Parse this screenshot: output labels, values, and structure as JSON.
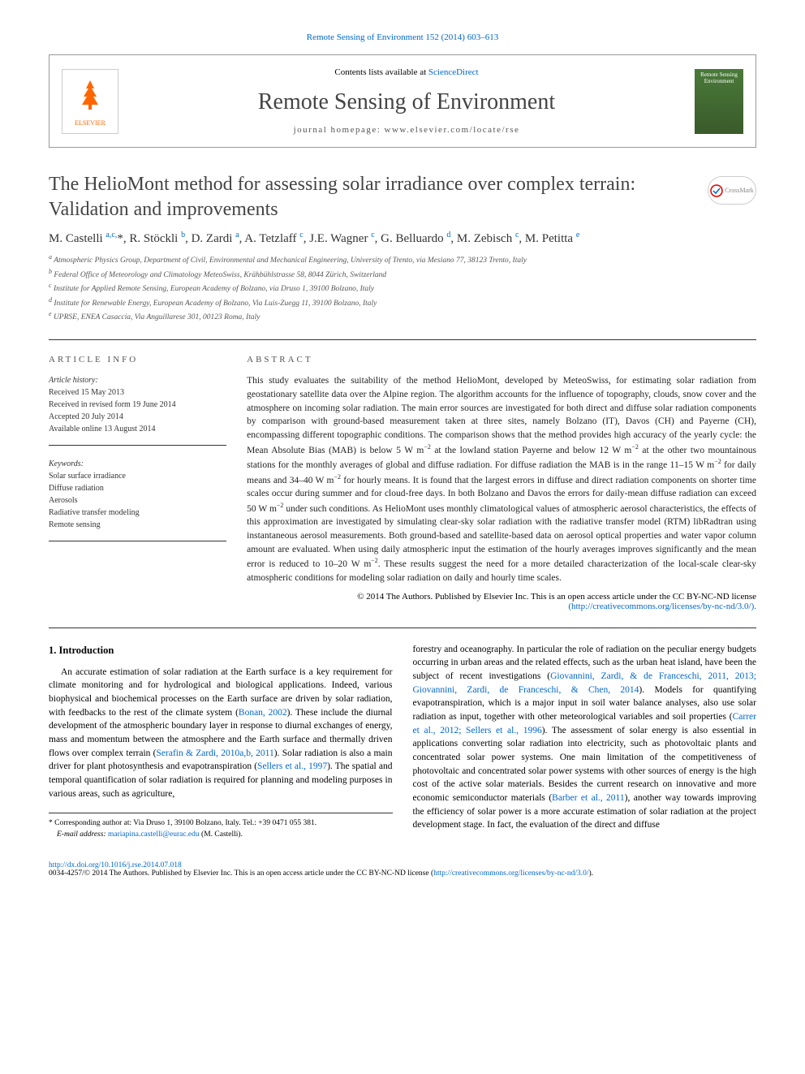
{
  "top_reference": "Remote Sensing of Environment 152 (2014) 603–613",
  "header": {
    "contents_prefix": "Contents lists available at ",
    "contents_link": "ScienceDirect",
    "journal_name": "Remote Sensing of Environment",
    "homepage_prefix": "journal homepage: ",
    "homepage_url": "www.elsevier.com/locate/rse",
    "publisher": "ELSEVIER",
    "cover_text": "Remote Sensing Environment"
  },
  "article": {
    "title": "The HelioMont method for assessing solar irradiance over complex terrain: Validation and improvements",
    "crossmark": "CrossMark",
    "authors_html": "M. Castelli <sup>a,c,</sup>*, R. Stöckli <sup>b</sup>, D. Zardi <sup>a</sup>, A. Tetzlaff <sup>c</sup>, J.E. Wagner <sup>c</sup>, G. Belluardo <sup>d</sup>, M. Zebisch <sup>c</sup>, M. Petitta <sup>e</sup>",
    "affiliations": [
      {
        "sup": "a",
        "text": "Atmospheric Physics Group, Department of Civil, Environmental and Mechanical Engineering, University of Trento, via Mesiano 77, 38123 Trento, Italy"
      },
      {
        "sup": "b",
        "text": "Federal Office of Meteorology and Climatology MeteoSwiss, Krähbühlstrasse 58, 8044 Zürich, Switzerland"
      },
      {
        "sup": "c",
        "text": "Institute for Applied Remote Sensing, European Academy of Bolzano, via Druso 1, 39100 Bolzano, Italy"
      },
      {
        "sup": "d",
        "text": "Institute for Renewable Energy, European Academy of Bolzano, Via Luis-Zuegg 11, 39100 Bolzano, Italy"
      },
      {
        "sup": "e",
        "text": "UPRSE, ENEA Casaccia, Via Anguillarese 301, 00123 Roma, Italy"
      }
    ]
  },
  "info": {
    "section_label": "ARTICLE INFO",
    "history_label": "Article history:",
    "history": [
      "Received 15 May 2013",
      "Received in revised form 19 June 2014",
      "Accepted 20 July 2014",
      "Available online 13 August 2014"
    ],
    "keywords_label": "Keywords:",
    "keywords": [
      "Solar surface irradiance",
      "Diffuse radiation",
      "Aerosols",
      "Radiative transfer modeling",
      "Remote sensing"
    ]
  },
  "abstract": {
    "section_label": "ABSTRACT",
    "text": "This study evaluates the suitability of the method HelioMont, developed by MeteoSwiss, for estimating solar radiation from geostationary satellite data over the Alpine region. The algorithm accounts for the influence of topography, clouds, snow cover and the atmosphere on incoming solar radiation. The main error sources are investigated for both direct and diffuse solar radiation components by comparison with ground-based measurement taken at three sites, namely Bolzano (IT), Davos (CH) and Payerne (CH), encompassing different topographic conditions. The comparison shows that the method provides high accuracy of the yearly cycle: the Mean Absolute Bias (MAB) is below 5 W m−2 at the lowland station Payerne and below 12 W m−2 at the other two mountainous stations for the monthly averages of global and diffuse radiation. For diffuse radiation the MAB is in the range 11–15 W m−2 for daily means and 34–40 W m−2 for hourly means. It is found that the largest errors in diffuse and direct radiation components on shorter time scales occur during summer and for cloud-free days. In both Bolzano and Davos the errors for daily-mean diffuse radiation can exceed 50 W m−2 under such conditions. As HelioMont uses monthly climatological values of atmospheric aerosol characteristics, the effects of this approximation are investigated by simulating clear-sky solar radiation with the radiative transfer model (RTM) libRadtran using instantaneous aerosol measurements. Both ground-based and satellite-based data on aerosol optical properties and water vapor column amount are evaluated. When using daily atmospheric input the estimation of the hourly averages improves significantly and the mean error is reduced to 10–20 W m−2. These results suggest the need for a more detailed characterization of the local-scale clear-sky atmospheric conditions for modeling solar radiation on daily and hourly time scales.",
    "copyright": "© 2014 The Authors. Published by Elsevier Inc. This is an open access article under the CC BY-NC-ND license",
    "license_url": "(http://creativecommons.org/licenses/by-nc-nd/3.0/)."
  },
  "body": {
    "section_number": "1. Introduction",
    "col1_p1": "An accurate estimation of solar radiation at the Earth surface is a key requirement for climate monitoring and for hydrological and biological applications. Indeed, various biophysical and biochemical processes on the Earth surface are driven by solar radiation, with feedbacks to the rest of the climate system (",
    "col1_link1": "Bonan, 2002",
    "col1_p1b": "). These include the diurnal development of the atmospheric boundary layer in response to diurnal exchanges of energy, mass and momentum between the atmosphere and the Earth surface and thermally driven flows over complex terrain (",
    "col1_link2": "Serafin & Zardi, 2010a,b, 2011",
    "col1_p1c": "). Solar radiation is also a main driver for plant photosynthesis and evapotranspiration (",
    "col1_link3": "Sellers et al., 1997",
    "col1_p1d": "). The spatial and temporal quantification of solar radiation is required for planning and modeling purposes in various areas, such as agriculture,",
    "corresponding_label": "* Corresponding author at: Via Druso 1, 39100 Bolzano, Italy. Tel.: +39 0471 055 381.",
    "email_label": "E-mail address: ",
    "email": "mariapina.castelli@eurac.edu",
    "email_suffix": " (M. Castelli).",
    "col2_p1": "forestry and oceanography. In particular the role of radiation on the peculiar energy budgets occurring in urban areas and the related effects, such as the urban heat island, have been the subject of recent investigations (",
    "col2_link1": "Giovannini, Zardi, & de Franceschi, 2011, 2013; Giovannini, Zardi, de Franceschi, & Chen, 2014",
    "col2_p1b": "). Models for quantifying evapotranspiration, which is a major input in soil water balance analyses, also use solar radiation as input, together with other meteorological variables and soil properties (",
    "col2_link2": "Carrer et al., 2012; Sellers et al., 1996",
    "col2_p1c": "). The assessment of solar energy is also essential in applications converting solar radiation into electricity, such as photovoltaic plants and concentrated solar power systems. One main limitation of the competitiveness of photovoltaic and concentrated solar power systems with other sources of energy is the high cost of the active solar materials. Besides the current research on innovative and more economic semiconductor materials (",
    "col2_link3": "Barber et al., 2011",
    "col2_p1d": "), another way towards improving the efficiency of solar power is a more accurate estimation of solar radiation at the project development stage. In fact, the evaluation of the direct and diffuse"
  },
  "footer": {
    "doi": "http://dx.doi.org/10.1016/j.rse.2014.07.018",
    "issn_line": "0034-4257/© 2014 The Authors. Published by Elsevier Inc. This is an open access article under the CC BY-NC-ND license (",
    "license_url": "http://creativecommons.org/licenses/by-nc-nd/3.0/",
    "license_suffix": ")."
  },
  "colors": {
    "link": "#0066cc",
    "text": "#000000",
    "muted": "#555555",
    "border": "#333333",
    "elsevier_orange": "#ff6600",
    "cover_green": "#4a7a3a"
  }
}
